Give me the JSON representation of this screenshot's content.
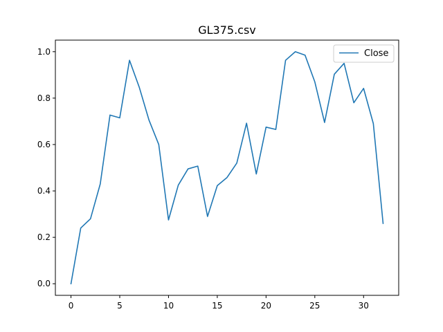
{
  "chart_data": {
    "type": "line",
    "title": "GL375.csv",
    "xlabel": "",
    "ylabel": "",
    "xlim": [
      -1.6,
      33.6
    ],
    "ylim": [
      -0.05,
      1.05
    ],
    "xticks": [
      0,
      5,
      10,
      15,
      20,
      25,
      30
    ],
    "yticks": [
      0.0,
      0.2,
      0.4,
      0.6,
      0.8,
      1.0
    ],
    "xtick_labels": [
      "0",
      "5",
      "10",
      "15",
      "20",
      "25",
      "30"
    ],
    "ytick_labels": [
      "0.0",
      "0.2",
      "0.4",
      "0.6",
      "0.8",
      "1.0"
    ],
    "grid": false,
    "legend_position": "top-right",
    "series": [
      {
        "name": "Close",
        "color": "#1f77b4",
        "x": [
          0,
          1,
          2,
          3,
          4,
          5,
          6,
          7,
          8,
          9,
          10,
          11,
          12,
          13,
          14,
          15,
          16,
          17,
          18,
          19,
          20,
          21,
          22,
          23,
          24,
          25,
          26,
          27,
          28,
          29,
          30,
          31,
          32
        ],
        "y": [
          0.0,
          0.24,
          0.28,
          0.43,
          0.727,
          0.715,
          0.963,
          0.847,
          0.705,
          0.6,
          0.275,
          0.425,
          0.495,
          0.507,
          0.29,
          0.423,
          0.458,
          0.52,
          0.692,
          0.473,
          0.675,
          0.665,
          0.963,
          1.0,
          0.985,
          0.87,
          0.695,
          0.903,
          0.95,
          0.78,
          0.842,
          0.69,
          0.26
        ]
      }
    ]
  }
}
